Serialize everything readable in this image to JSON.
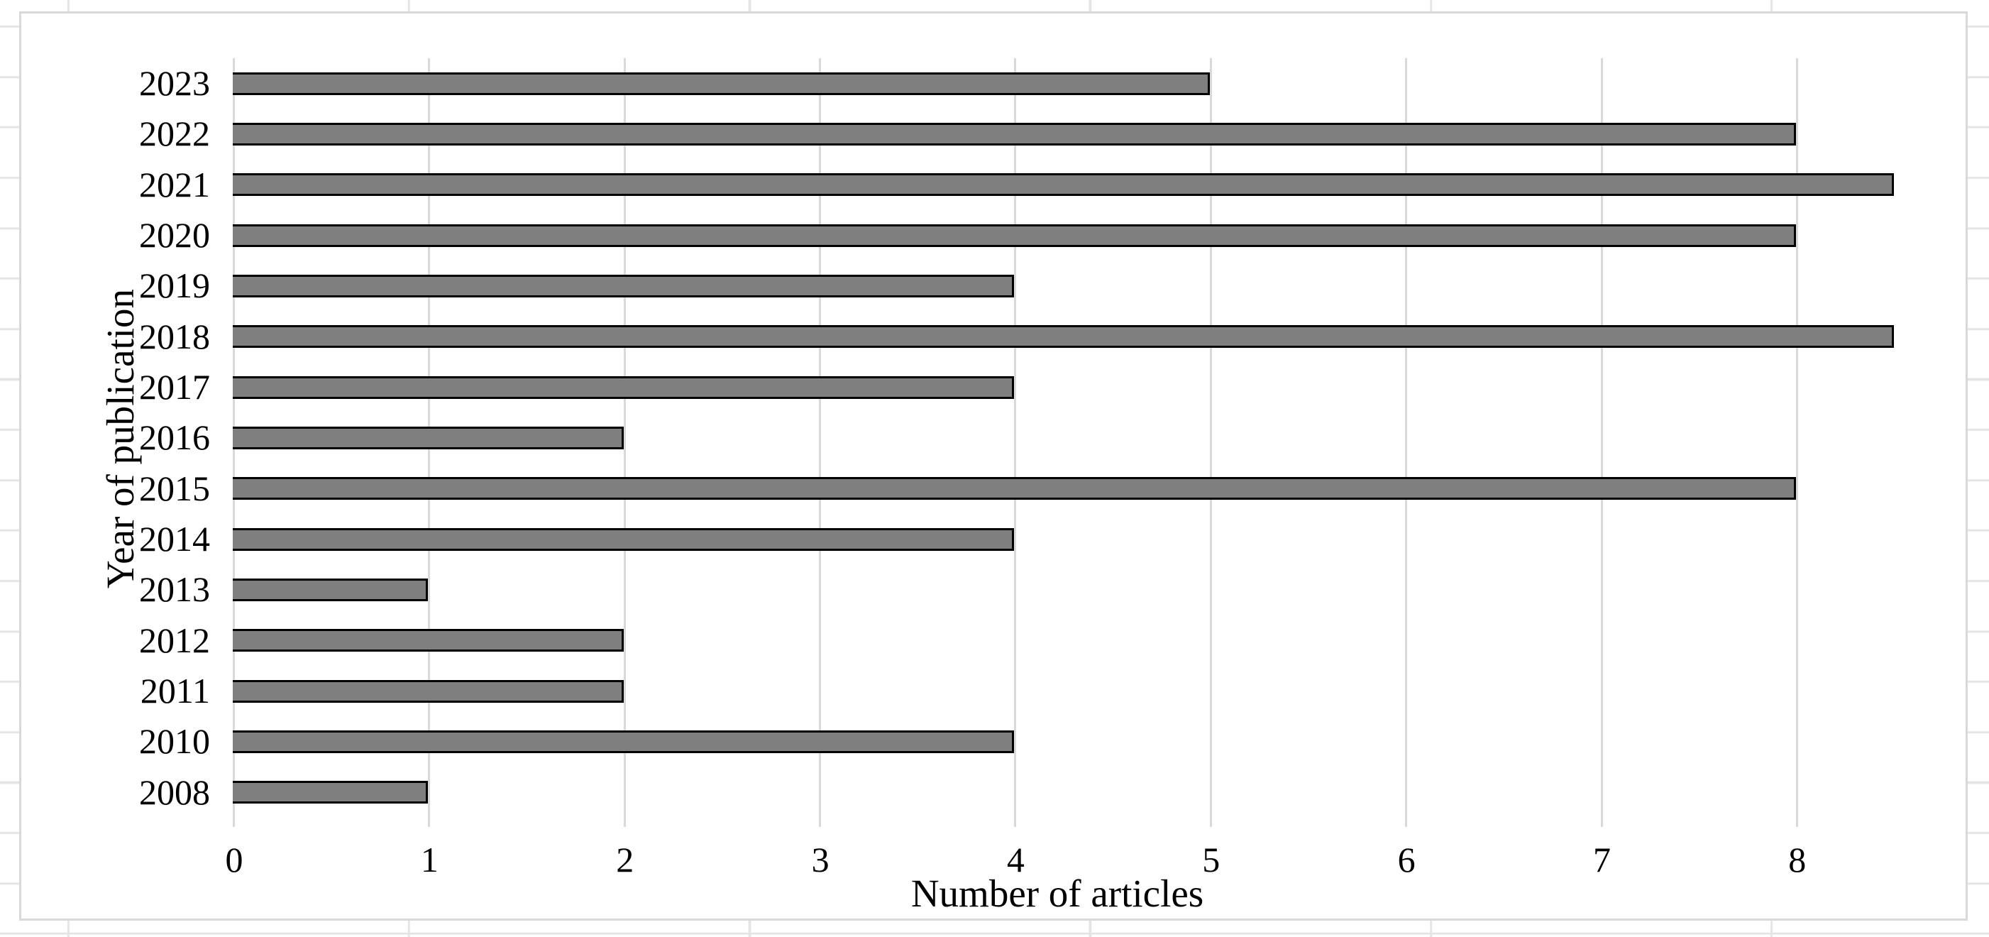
{
  "figure": {
    "background": "#ffffff",
    "border_color": "#d9d9d9",
    "worksheet_gridline_color": "#e4e4e4"
  },
  "chart_data": {
    "type": "bar",
    "orientation": "horizontal",
    "title": "",
    "xlabel": "Number of articles",
    "ylabel": "Year of publication",
    "categories": [
      "2023",
      "2022",
      "2021",
      "2020",
      "2019",
      "2018",
      "2017",
      "2016",
      "2015",
      "2014",
      "2013",
      "2012",
      "2011",
      "2010",
      "2008"
    ],
    "values": [
      5,
      8,
      8.5,
      8,
      4,
      8.5,
      4,
      2,
      8,
      4,
      1,
      2,
      2,
      4,
      1
    ],
    "x_ticks": [
      "0",
      "1",
      "2",
      "3",
      "4",
      "5",
      "6",
      "7",
      "8"
    ],
    "xlim": [
      0,
      8.5
    ],
    "grid": "vertical-major",
    "legend": "none",
    "bar_fill_color": "#7f7f7f",
    "bar_border_color": "#000000",
    "gridline_color": "#d9d9d9"
  }
}
